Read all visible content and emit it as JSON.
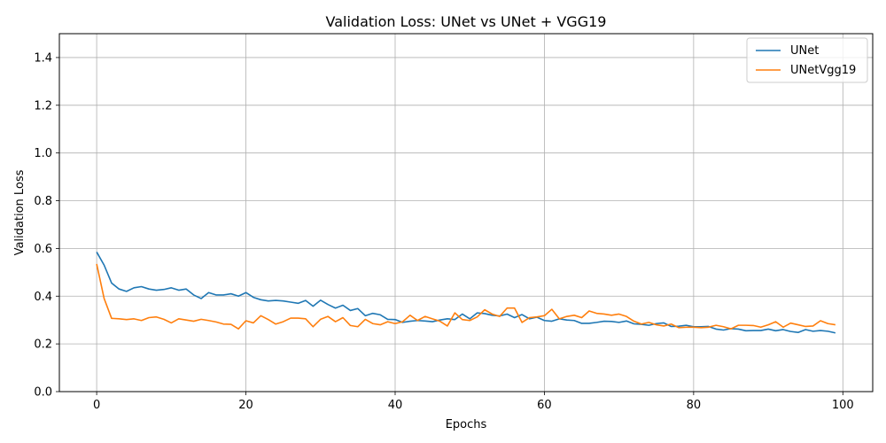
{
  "chart_data": {
    "type": "line",
    "title": "Validation Loss: UNet vs UNet + VGG19",
    "xlabel": "Epochs",
    "ylabel": "Validation Loss",
    "xlim": [
      -5,
      104
    ],
    "ylim": [
      0,
      1.5
    ],
    "xticks": [
      0,
      20,
      40,
      60,
      80,
      100
    ],
    "yticks": [
      0.0,
      0.2,
      0.4,
      0.6,
      0.8,
      1.0,
      1.2,
      1.4
    ],
    "ytick_labels": [
      "0.0",
      "0.2",
      "0.4",
      "0.6",
      "0.8",
      "1.0",
      "1.2",
      "1.4"
    ],
    "grid": true,
    "legend_position": "top-right",
    "series": [
      {
        "name": "UNet",
        "color": "#1f77b4",
        "values": [
          0.585,
          0.53,
          0.455,
          0.43,
          0.42,
          0.435,
          0.44,
          0.43,
          0.425,
          0.428,
          0.435,
          0.425,
          0.43,
          0.405,
          0.39,
          0.415,
          0.405,
          0.405,
          0.41,
          0.4,
          0.415,
          0.395,
          0.385,
          0.38,
          0.382,
          0.38,
          0.375,
          0.37,
          0.382,
          0.358,
          0.383,
          0.365,
          0.35,
          0.362,
          0.34,
          0.348,
          0.318,
          0.328,
          0.322,
          0.303,
          0.302,
          0.29,
          0.295,
          0.298,
          0.296,
          0.293,
          0.3,
          0.305,
          0.302,
          0.325,
          0.305,
          0.33,
          0.327,
          0.32,
          0.317,
          0.325,
          0.31,
          0.323,
          0.305,
          0.312,
          0.298,
          0.295,
          0.305,
          0.3,
          0.298,
          0.286,
          0.286,
          0.29,
          0.295,
          0.294,
          0.29,
          0.296,
          0.284,
          0.282,
          0.278,
          0.285,
          0.288,
          0.273,
          0.274,
          0.278,
          0.272,
          0.272,
          0.273,
          0.262,
          0.258,
          0.264,
          0.262,
          0.255,
          0.256,
          0.256,
          0.262,
          0.255,
          0.26,
          0.252,
          0.248,
          0.26,
          0.253,
          0.256,
          0.253,
          0.246
        ]
      },
      {
        "name": "UNetVgg19",
        "color": "#ff7f0e",
        "values": [
          0.535,
          0.39,
          0.307,
          0.305,
          0.302,
          0.305,
          0.298,
          0.31,
          0.313,
          0.303,
          0.288,
          0.305,
          0.3,
          0.295,
          0.303,
          0.298,
          0.292,
          0.283,
          0.282,
          0.263,
          0.297,
          0.288,
          0.318,
          0.302,
          0.283,
          0.293,
          0.308,
          0.308,
          0.305,
          0.272,
          0.303,
          0.315,
          0.293,
          0.31,
          0.277,
          0.272,
          0.303,
          0.285,
          0.28,
          0.293,
          0.285,
          0.293,
          0.32,
          0.298,
          0.315,
          0.305,
          0.295,
          0.275,
          0.33,
          0.302,
          0.298,
          0.313,
          0.343,
          0.325,
          0.315,
          0.35,
          0.35,
          0.29,
          0.31,
          0.313,
          0.318,
          0.345,
          0.305,
          0.315,
          0.32,
          0.31,
          0.338,
          0.328,
          0.325,
          0.32,
          0.325,
          0.315,
          0.295,
          0.283,
          0.29,
          0.28,
          0.275,
          0.283,
          0.268,
          0.27,
          0.27,
          0.268,
          0.27,
          0.278,
          0.272,
          0.263,
          0.278,
          0.278,
          0.277,
          0.27,
          0.28,
          0.293,
          0.27,
          0.287,
          0.28,
          0.273,
          0.275,
          0.297,
          0.285,
          0.28
        ]
      }
    ]
  }
}
